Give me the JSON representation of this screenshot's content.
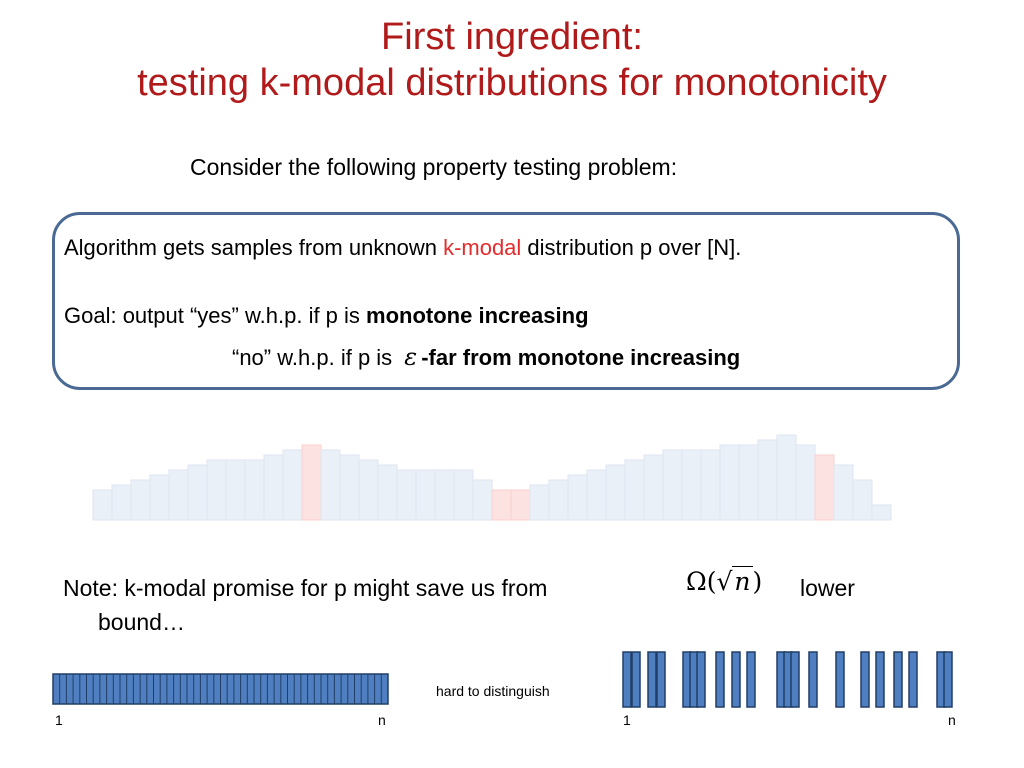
{
  "slide": {
    "title_line1": "First ingredient:",
    "title_line2": "testing k-modal distributions for monotonicity",
    "intro": "Consider the following property testing problem:",
    "box": {
      "line1_pre": "Algorithm gets samples from unknown ",
      "line1_highlight": "k-modal",
      "line1_post": " distribution p over [N].",
      "goal_pre": "Goal:  output “yes” w.h.p. if p is ",
      "goal_bold": "monotone increasing",
      "no_pre": "“no” w.h.p. if p is ",
      "epsilon": "ε",
      "no_bold": "-far from monotone increasing"
    },
    "note_line1_pre": "Note:  k-modal promise for p might save us from",
    "note_line1_post": "lower",
    "note_line2": "bound…",
    "omega_expr": {
      "omega": "Ω(",
      "sqrt": "√",
      "n": "n",
      "close": ")"
    },
    "hard_label": "hard to distinguish",
    "left_axis": {
      "start": "1",
      "end": "n"
    },
    "right_axis": {
      "start": "1",
      "end": "n"
    },
    "colors": {
      "title": "#b11a1a",
      "highlight": "#e52b2b",
      "box_border": "#4a6a93",
      "bar_fill": "#4f7fc0",
      "bar_stroke": "#213f66"
    }
  },
  "chart_data": {
    "type": "bar",
    "values": [
      3,
      3.5,
      4,
      4.5,
      5,
      5.5,
      6,
      6,
      6,
      6.5,
      7,
      7.5,
      7,
      6.5,
      6,
      5.5,
      5,
      5,
      5,
      5,
      4,
      3,
      3,
      3.5,
      4,
      4.5,
      5,
      5.5,
      6,
      6.5,
      7,
      7,
      7,
      7.5,
      7.5,
      8,
      8.5,
      7.5,
      6.5,
      5.5,
      4,
      1.5
    ],
    "highlighted_bars": [
      11,
      21,
      22,
      38
    ],
    "ylim": [
      0,
      9
    ],
    "grid": false
  }
}
